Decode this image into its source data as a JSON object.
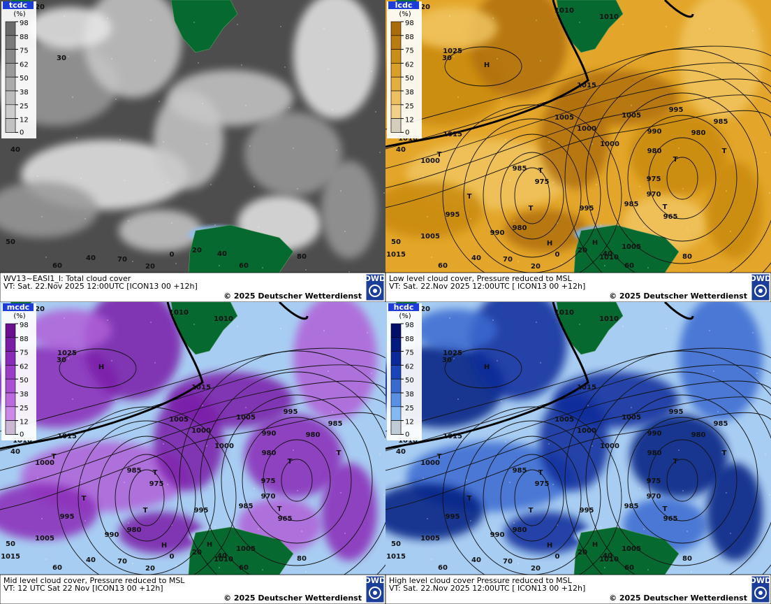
{
  "legend_unit": "(%)",
  "legend_ticks": [
    "98",
    "88",
    "75",
    "62",
    "50",
    "38",
    "25",
    "12",
    "0"
  ],
  "copyright": "© 2025 Deutscher Wetterdienst",
  "logo": "DWD",
  "panels": [
    {
      "legend_title": "tcdc",
      "caption": "WV13~EASI1_I: Total cloud cover",
      "valid_time": "VT: Sat. 22.Nov 2025 12:00UTC [ICON13 00  +12h]"
    },
    {
      "legend_title": "lcdc",
      "caption": "Low level cloud cover, Pressure reduced to MSL",
      "valid_time": "VT: Sat. 22.Nov 2025 12:00UTC [ ICON13 00  +12h]"
    },
    {
      "legend_title": "mcdc",
      "caption": "Mid level cloud cover, Pressure reduced to MSL",
      "valid_time": "VT: 12 UTC Sat  22 Nov [ICON13 00 +12h]"
    },
    {
      "legend_title": "hcdc",
      "caption": "High level cloud cover Pressure reduced to MSL",
      "valid_time": "VT: Sat. 22.Nov 2025 12:00UTC [ ICON13 00  +12h]"
    }
  ],
  "grid_labels": [
    "20",
    "30",
    "40",
    "50",
    "60",
    "40",
    "70",
    "20",
    "0",
    "20",
    "40",
    "60",
    "80"
  ],
  "pressure_labels": [
    "1010",
    "1010",
    "1025",
    "H",
    "1015",
    "1005",
    "1005",
    "995",
    "985",
    "1000",
    "990",
    "980",
    "1015",
    "1010",
    "1000",
    "980",
    "T",
    "1000",
    "T",
    "T",
    "985",
    "T",
    "975",
    "975",
    "T",
    "970",
    "985",
    "T",
    "T",
    "995",
    "995",
    "965",
    "980",
    "990",
    "1005",
    "1005",
    "1015",
    "H",
    "H",
    "1010"
  ]
}
